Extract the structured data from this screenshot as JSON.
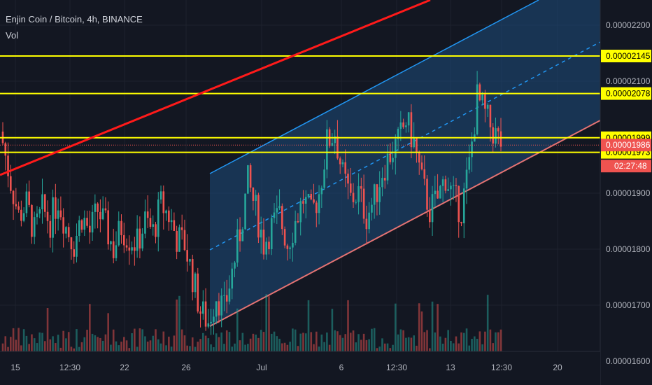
{
  "header": {
    "symbol_title": "Enjin Coin / Bitcoin, 4h, BINANCE",
    "volume_label": "Vol"
  },
  "colors": {
    "background": "#131722",
    "candle_up": "#26a69a",
    "candle_down": "#ef5350",
    "horizontal_level": "#ffff00",
    "red_trendline": "#ff1a1a",
    "channel_line": "#2196f3",
    "channel_fill": "#1e4d7b",
    "support_line": "#e57373",
    "countdown_bg": "#ef5350"
  },
  "chart_data": {
    "type": "candlestick",
    "y_axis": {
      "range": [
        1.58e-05,
        2.25e-05
      ],
      "ticks": [
        "0.00002200",
        "0.00002100",
        "0.00001900",
        "0.00001800",
        "0.00001700",
        "0.00001600"
      ]
    },
    "x_axis": {
      "ticks": [
        "15",
        "12:30",
        "22",
        "26",
        "Jul",
        "6",
        "12:30",
        "13",
        "12:30",
        "20"
      ]
    },
    "horizontal_levels": [
      {
        "label": "0.00002145",
        "value": 2.145e-05
      },
      {
        "label": "0.00002078",
        "value": 2.078e-05
      },
      {
        "label": "0.00001999",
        "value": 1.999e-05
      },
      {
        "label": "0.00001973",
        "value": 1.973e-05
      }
    ],
    "last_price": {
      "label": "0.00001986",
      "value": 1.986e-05
    },
    "countdown": "02:27:48",
    "candle_sequence_close": [
      1.99e-05,
      1.92e-05,
      1.86e-05,
      1.88e-05,
      1.83e-05,
      1.87e-05,
      1.85e-05,
      1.89e-05,
      1.84e-05,
      1.81e-05,
      1.86e-05,
      1.83e-05,
      1.87e-05,
      1.84e-05,
      1.8e-05,
      1.84e-05,
      1.82e-05,
      1.81e-05,
      1.85e-05,
      1.83e-05,
      1.88e-05,
      1.86e-05,
      1.82e-05,
      1.81e-05,
      1.75e-05,
      1.69e-05,
      1.67e-05,
      1.72e-05,
      1.69e-05,
      1.76e-05,
      1.83e-05,
      1.92e-05,
      1.87e-05,
      1.81e-05,
      1.84e-05,
      1.86e-05,
      1.81e-05,
      1.85e-05,
      1.89e-05,
      1.86e-05,
      1.9e-05,
      1.99e-05,
      2.01e-05,
      1.93e-05,
      1.89e-05,
      1.9e-05,
      1.86e-05,
      1.89e-05,
      1.94e-05,
      1.97e-05,
      1.99e-05,
      2.03e-05,
      1.99e-05,
      1.92e-05,
      1.87e-05,
      1.89e-05,
      1.93e-05,
      1.89e-05,
      1.87e-05,
      1.95e-05,
      2.07e-05,
      2.04e-05,
      2.01e-05,
      1.99e-05
    ]
  }
}
